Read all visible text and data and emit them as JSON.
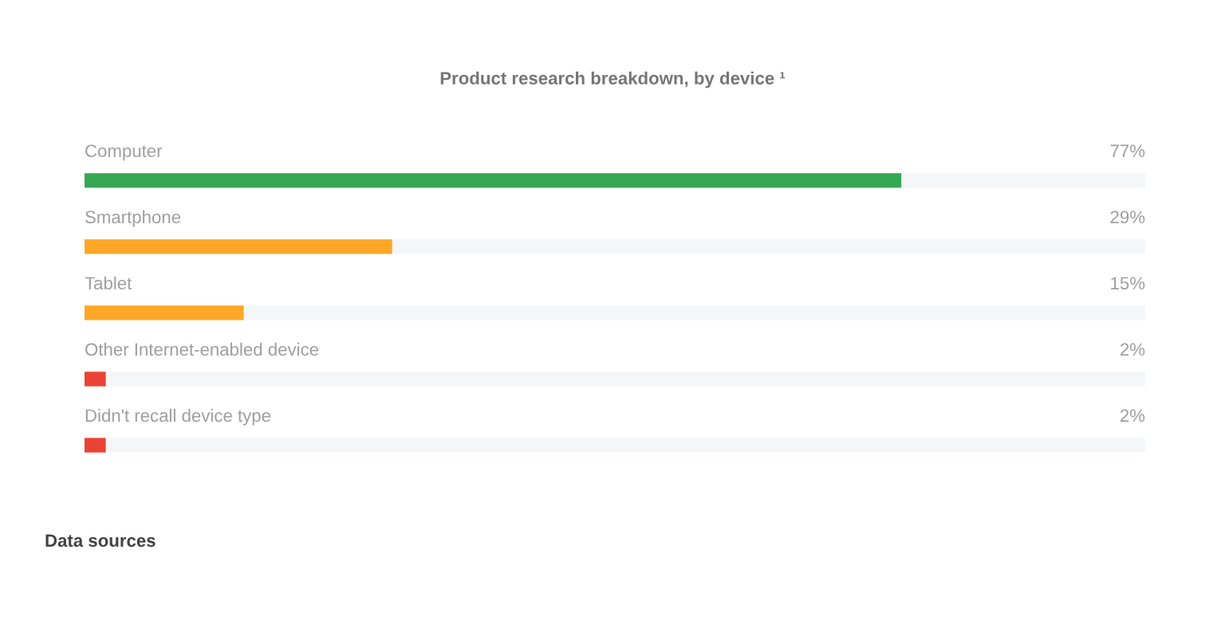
{
  "chart_data": {
    "type": "bar",
    "orientation": "horizontal",
    "title": "Product research breakdown, by device ¹",
    "categories": [
      "Computer",
      "Smartphone",
      "Tablet",
      "Other Internet-enabled device",
      "Didn't recall device type"
    ],
    "values": [
      77,
      29,
      15,
      2,
      2
    ],
    "colors": [
      "#34a853",
      "#ffa726",
      "#ffa726",
      "#ea4335",
      "#ea4335"
    ],
    "value_labels": [
      "77%",
      "29%",
      "15%",
      "2%",
      "2%"
    ],
    "xlim": [
      0,
      100
    ],
    "annotations": [
      "Data sources"
    ]
  }
}
